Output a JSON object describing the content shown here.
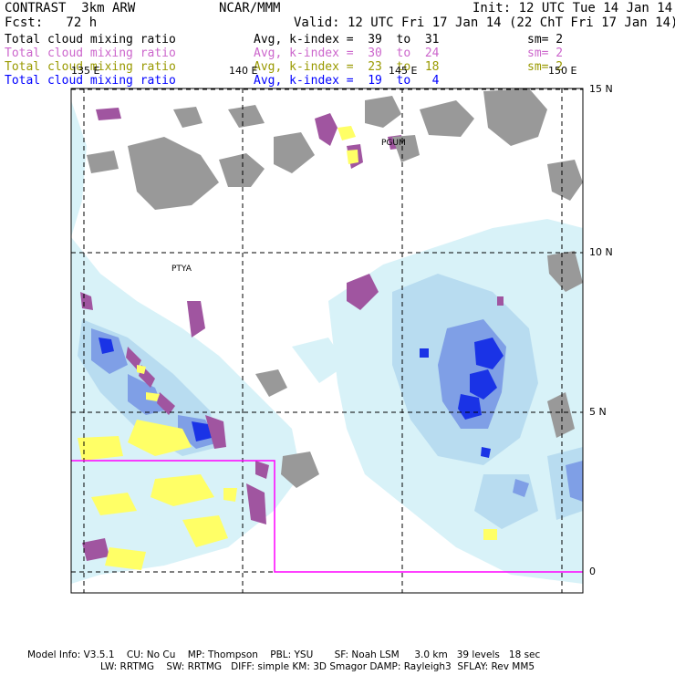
{
  "header": {
    "left_title": "CONTRAST  3km ARW",
    "center_title": "NCAR/MMM",
    "init": "Init: 12 UTC Tue 14 Jan 14",
    "forecast": "Fcst:   72 h",
    "valid": "Valid: 12 UTC Fri 17 Jan 14 (22 ChT Fri 17 Jan 14)"
  },
  "fields": [
    {
      "name": "Total cloud mixing ratio",
      "avg": "Avg, k-index =  39  to  31",
      "sm": "sm= 2",
      "color": "#000000"
    },
    {
      "name": "Total cloud mixing ratio",
      "avg": "Avg, k-index =  30  to  24",
      "sm": "sm= 2",
      "color": "#cc66cc"
    },
    {
      "name": "Total cloud mixing ratio",
      "avg": "Avg, k-index =  23  to  18",
      "sm": "sm= 2",
      "color": "#999900"
    },
    {
      "name": "Total cloud mixing ratio",
      "avg": "Avg, k-index =  19  to   4",
      "sm": "",
      "color": "#0000ff"
    }
  ],
  "map": {
    "lat_labels": [
      "15 N",
      "10 N",
      "5 N",
      "0"
    ],
    "lon_labels": [
      "135 E",
      "140 E",
      "145 E",
      "150 E"
    ],
    "stations": [
      "PGUM",
      "PTYA"
    ],
    "colors": {
      "ocean": "#ffffff",
      "land": "#999999",
      "low_cloud": "#d8f2f8",
      "mid_cloud": "#b8dcf0",
      "high_cloud": "#7f9fe6",
      "deep_cloud": "#1a33e6",
      "purple_cloud": "#a055a0",
      "yellow_cloud": "#ffff66",
      "subdomain_box": "#ff00ff"
    }
  },
  "footer": {
    "line1": "Model Info: V3.5.1    CU: No Cu    MP: Thompson    PBL: YSU       SF: Noah LSM     3.0 km   39 levels   18 sec",
    "line2": "LW: RRTMG    SW: RRTMG   DIFF: simple KM: 3D Smagor DAMP: Rayleigh3  SFLAY: Rev MM5"
  }
}
